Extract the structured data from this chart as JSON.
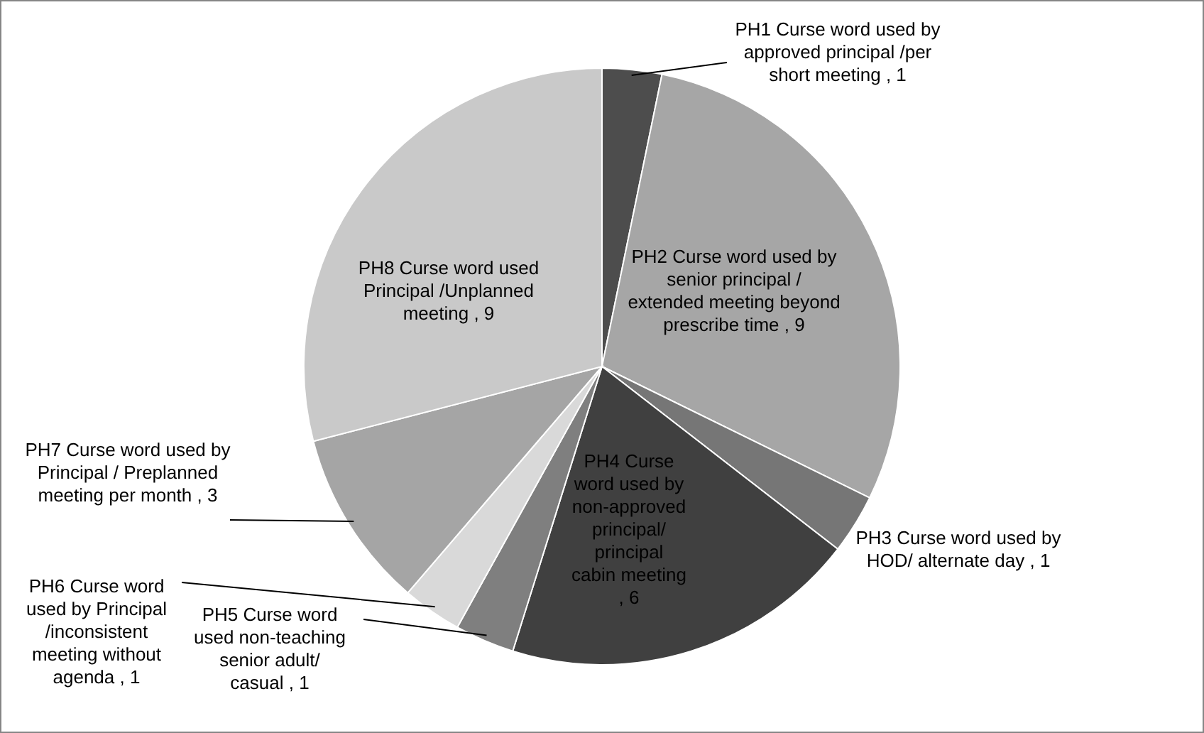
{
  "chart_data": {
    "type": "pie",
    "categories": [
      "PH1 Curse word used by approved principal /per short meeting",
      "PH2 Curse word used by senior principal / extended meeting beyond prescribe time",
      "PH3 Curse word used by HOD/ alternate day",
      "PH4 Curse word used by non-approved principal/ principal cabin meeting",
      "PH5 Curse word used non-teaching senior adult/ casual",
      "PH6 Curse word used by Principal /inconsistent meeting without agenda",
      "PH7 Curse word used by Principal / Preplanned meeting per month",
      "PH8 Curse word used Principal /Unplanned meeting"
    ],
    "values": [
      1,
      9,
      1,
      6,
      1,
      1,
      3,
      9
    ],
    "colors": [
      "#4d4d4d",
      "#a6a6a6",
      "#767676",
      "#404040",
      "#7f7f7f",
      "#d9d9d9",
      "#a5a5a5",
      "#c9c9c9"
    ],
    "value_labels": [
      ", 1",
      ", 9",
      ", 1",
      ", 6",
      ", 1",
      ", 1",
      ", 3",
      ", 9"
    ],
    "legend": false
  }
}
